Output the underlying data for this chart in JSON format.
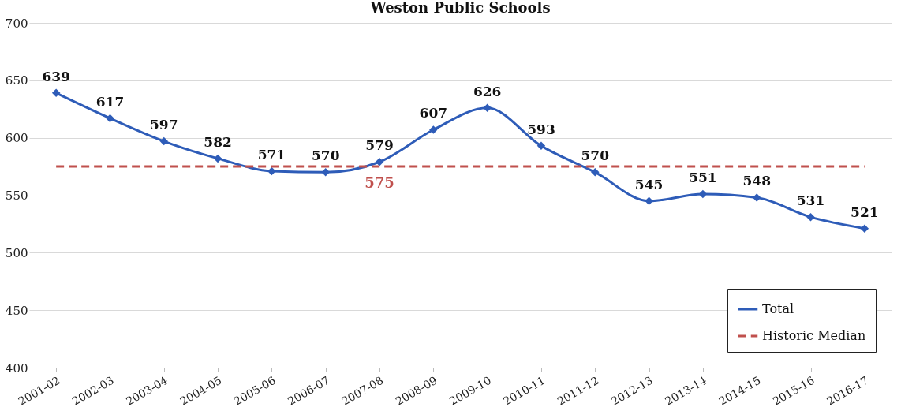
{
  "chart_data": {
    "type": "line",
    "title": "Weston Public Schools",
    "categories": [
      "2001-02",
      "2002-03",
      "2003-04",
      "2004-05",
      "2005-06",
      "2006-07",
      "2007-08",
      "2008-09",
      "2009-10",
      "2010-11",
      "2011-12",
      "2012-13",
      "2013-14",
      "2014-15",
      "2015-16",
      "2016-17"
    ],
    "series": [
      {
        "name": "Total",
        "color": "#2e5cb8",
        "marker": "diamond",
        "line_style": "solid",
        "values": [
          639,
          617,
          597,
          582,
          571,
          570,
          579,
          607,
          626,
          593,
          570,
          545,
          551,
          548,
          531,
          521
        ]
      },
      {
        "name": "Historic Median",
        "color": "#c0504d",
        "marker": "none",
        "line_style": "dashed",
        "values": [
          575,
          575,
          575,
          575,
          575,
          575,
          575,
          575,
          575,
          575,
          575,
          575,
          575,
          575,
          575,
          575
        ],
        "value_labels": [
          null,
          null,
          null,
          null,
          null,
          null,
          "575",
          null,
          null,
          null,
          null,
          null,
          null,
          null,
          null,
          null
        ]
      }
    ],
    "data_labels": true,
    "ylim": [
      400,
      700
    ],
    "yticks": [
      400,
      450,
      500,
      550,
      600,
      650,
      700
    ],
    "grid": "y",
    "legend": "bottom right"
  }
}
